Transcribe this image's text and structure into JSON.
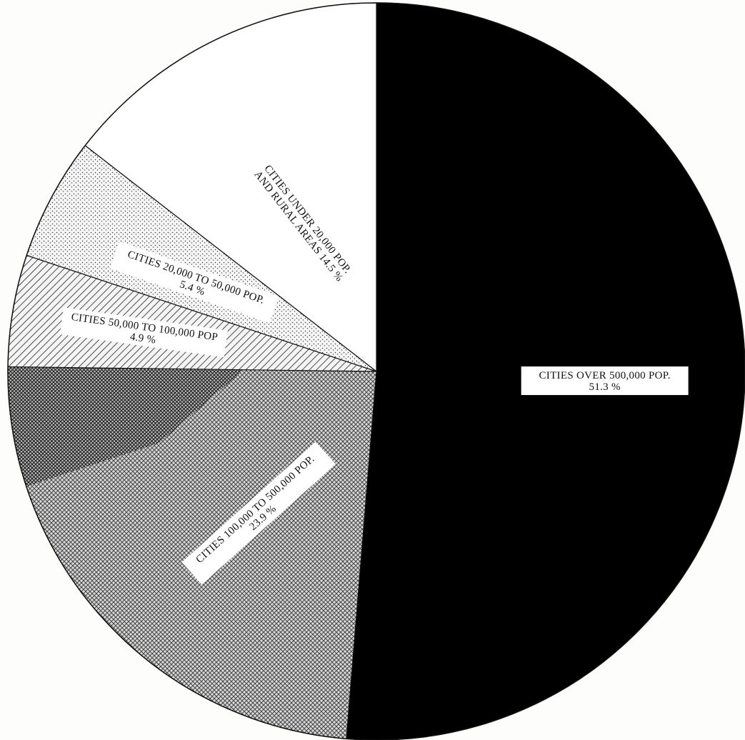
{
  "chart_data": {
    "type": "pie",
    "title": "",
    "start_angle_deg": 0,
    "direction": "clockwise",
    "slices": [
      {
        "label_lines": [
          "CITIES OVER 500,000 POP.",
          "51.3 %"
        ],
        "value": 51.3,
        "fill": "solid",
        "color": "#000000"
      },
      {
        "label_lines": [
          "CITIES 100,000 TO 500,000 POP.",
          "23.9 %"
        ],
        "value": 23.9,
        "fill": "crosshatch",
        "color": "#555555"
      },
      {
        "label_lines": [
          "CITIES 50,000 TO 100,000 POP",
          "4.9 %"
        ],
        "value": 4.9,
        "fill": "diagonal-lines",
        "color": "#222222"
      },
      {
        "label_lines": [
          "CITIES 20,000 TO 50,000 POP.",
          "5.4 %"
        ],
        "value": 5.4,
        "fill": "stipple",
        "color": "#333333"
      },
      {
        "label_lines": [
          "CITIES UNDER 20,000 POP.",
          "AND RURAL AREAS 14.5 %"
        ],
        "value": 14.5,
        "fill": "blank",
        "color": "#ffffff"
      }
    ]
  }
}
